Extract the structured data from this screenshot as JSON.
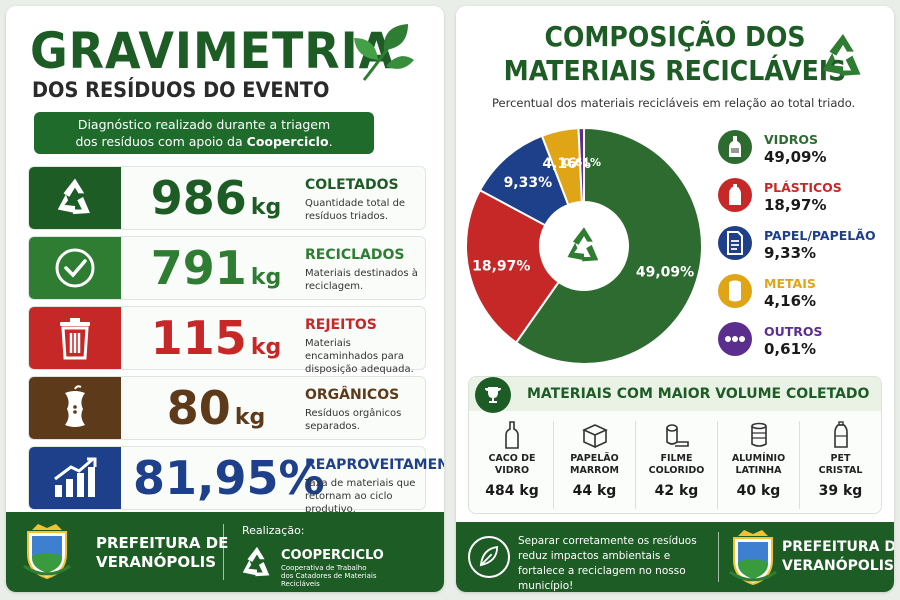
{
  "left": {
    "title": "GRAVIMETRIA",
    "subtitle": "DOS RESÍDUOS DO EVENTO",
    "diag_line1": "Diagnóstico realizado durante a triagem",
    "diag_line2_pre": "dos resíduos com apoio da ",
    "diag_line2_bold": "Cooperciclo",
    "diag_line2_post": ".",
    "stats": [
      {
        "value": "986",
        "unit": "kg",
        "label": "COLETADOS",
        "desc": "Quantidade total de resíduos triados.",
        "color": "#1e5c26",
        "icon": "recycle-icon"
      },
      {
        "value": "791",
        "unit": "kg",
        "label": "RECICLADOS",
        "desc": "Materiais destinados à reciclagem.",
        "color": "#2e7d32",
        "icon": "check-circle-icon"
      },
      {
        "value": "115",
        "unit": "kg",
        "label": "REJEITOS",
        "desc": "Materiais encaminhados para disposição adequada.",
        "color": "#c62828",
        "icon": "trash-icon"
      },
      {
        "value": "80",
        "unit": "kg",
        "label": "ORGÂNICOS",
        "desc": "Resíduos orgânicos separados.",
        "color": "#5d3a1a",
        "icon": "apple-core-icon"
      },
      {
        "value": "81,95%",
        "unit": "",
        "label": "REAPROVEITAMENTO",
        "desc": "Taxa de materiais que retornam ao ciclo produtivo.",
        "color": "#1e3f8a",
        "icon": "growth-chart-icon"
      }
    ],
    "footer": {
      "pref_line1": "PREFEITURA DE",
      "pref_line2": "VERANÓPOLIS",
      "realizacao": "Realização:",
      "coop_name": "COOPERCICLO",
      "coop_sub1": "Cooperativa de Trabalho",
      "coop_sub2": "dos Catadores de Materiais Recicláveis"
    }
  },
  "right": {
    "title_line1": "COMPOSIÇÃO DOS",
    "title_line2": "MATERIAIS RECICLÁVEIS",
    "subtitle": "Percentual dos materiais recicláveis em relação ao total triado.",
    "legend": [
      {
        "name": "VIDROS",
        "value": "49,09%",
        "color": "#2e6b30",
        "icon": "bottle-icon"
      },
      {
        "name": "PLÁSTICOS",
        "value": "18,97%",
        "color": "#c62828",
        "icon": "plastic-bottle-icon"
      },
      {
        "name": "PAPEL/PAPELÃO",
        "value": "9,33%",
        "color": "#1e3f8a",
        "icon": "document-icon"
      },
      {
        "name": "METAIS",
        "value": "4,16%",
        "color": "#e0a516",
        "icon": "can-icon"
      },
      {
        "name": "OUTROS",
        "value": "0,61%",
        "color": "#5b2d8e",
        "icon": "dots-icon"
      }
    ],
    "top_title": "MATERIAIS COM MAIOR VOLUME COLETADO",
    "top_materials": [
      {
        "line1": "CACO DE",
        "line2": "VIDRO",
        "value": "484 kg",
        "icon": "glass-bottle-icon"
      },
      {
        "line1": "PAPELÃO",
        "line2": "MARROM",
        "value": "44 kg",
        "icon": "cardboard-box-icon"
      },
      {
        "line1": "FILME",
        "line2": "COLORIDO",
        "value": "42 kg",
        "icon": "film-roll-icon"
      },
      {
        "line1": "ALUMÍNIO",
        "line2": "LATINHA",
        "value": "40 kg",
        "icon": "aluminum-can-icon"
      },
      {
        "line1": "PET",
        "line2": "CRISTAL",
        "value": "39 kg",
        "icon": "pet-bottle-icon"
      }
    ],
    "footer": {
      "msg": "Separar corretamente os resíduos reduz impactos ambientais e fortalece a reciclagem no nosso município!",
      "pref_line1": "PREFEITURA DE",
      "pref_line2": "VERANÓPOLIS"
    }
  },
  "chart_data": {
    "type": "pie",
    "categories": [
      "VIDROS",
      "PLÁSTICOS",
      "PAPEL/PAPELÃO",
      "METAIS",
      "OUTROS"
    ],
    "values": [
      49.09,
      18.97,
      9.33,
      4.16,
      0.61
    ],
    "labels": [
      "49,09%",
      "18,97%",
      "9,33%",
      "4,16%",
      "0,61%"
    ],
    "colors": [
      "#2e6b30",
      "#c62828",
      "#1e3f8a",
      "#e0a516",
      "#5b2d8e"
    ]
  }
}
